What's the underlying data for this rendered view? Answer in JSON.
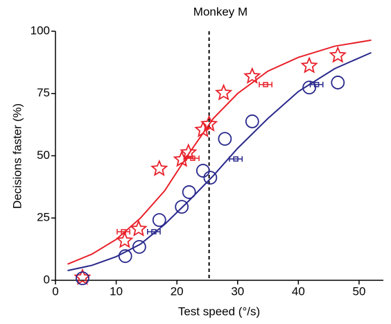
{
  "chart_data": {
    "type": "scatter",
    "title": "Monkey M",
    "xlabel": "Test speed (°/s)",
    "ylabel": "Decisions faster (%)",
    "xlim": [
      0,
      54
    ],
    "ylim": [
      0,
      100
    ],
    "xticks": [
      0,
      10,
      20,
      30,
      40,
      50
    ],
    "yticks": [
      0,
      25,
      50,
      75,
      100
    ],
    "grid": false,
    "reference_x": 25.3,
    "series": [
      {
        "marker": "star",
        "color": "#e8202a",
        "x": [
          4.45,
          11.4,
          13.7,
          17.1,
          20.8,
          21.9,
          24.3,
          25.3,
          27.7,
          32.4,
          41.8,
          46.5
        ],
        "values": [
          1.1,
          15.9,
          20.6,
          44.8,
          48.5,
          51.3,
          60.4,
          62.7,
          75.2,
          81.9,
          86.1,
          90.3
        ]
      },
      {
        "marker": "circle",
        "color": "#28288c",
        "x": [
          4.45,
          11.5,
          13.8,
          17.1,
          20.8,
          22.0,
          24.3,
          25.5,
          27.9,
          32.4,
          41.8,
          46.5
        ],
        "values": [
          0.8,
          9.7,
          13.4,
          24.2,
          29.5,
          35.4,
          44.0,
          41.2,
          56.8,
          63.8,
          77.4,
          79.4
        ]
      },
      {
        "marker": "errorbar",
        "color": "#e8202a",
        "x": [
          11.2,
          22.6,
          34.6
        ],
        "values": [
          19.5,
          49.0,
          78.6
        ],
        "xerr": [
          0.7,
          0.7,
          0.7
        ]
      },
      {
        "marker": "errorbar",
        "color": "#28288c",
        "x": [
          16.2,
          29.7,
          43.0
        ],
        "values": [
          19.5,
          48.7,
          78.6
        ],
        "xerr": [
          0.7,
          0.7,
          0.7
        ]
      },
      {
        "marker": "line",
        "color": "#e8202a",
        "x": [
          2,
          6,
          10,
          14,
          18,
          22,
          26,
          30,
          35,
          40,
          46,
          52
        ],
        "values": [
          6.5,
          10.5,
          16.4,
          25,
          36,
          51,
          65,
          75,
          84,
          89.5,
          94,
          96.4
        ]
      },
      {
        "marker": "line",
        "color": "#28288c",
        "x": [
          2,
          6,
          10,
          14,
          18,
          22,
          26,
          30,
          35,
          40,
          46,
          52
        ],
        "values": [
          3.9,
          6,
          9.5,
          14.5,
          22.5,
          32,
          42,
          53,
          65,
          75.8,
          85,
          91.4
        ]
      }
    ]
  }
}
